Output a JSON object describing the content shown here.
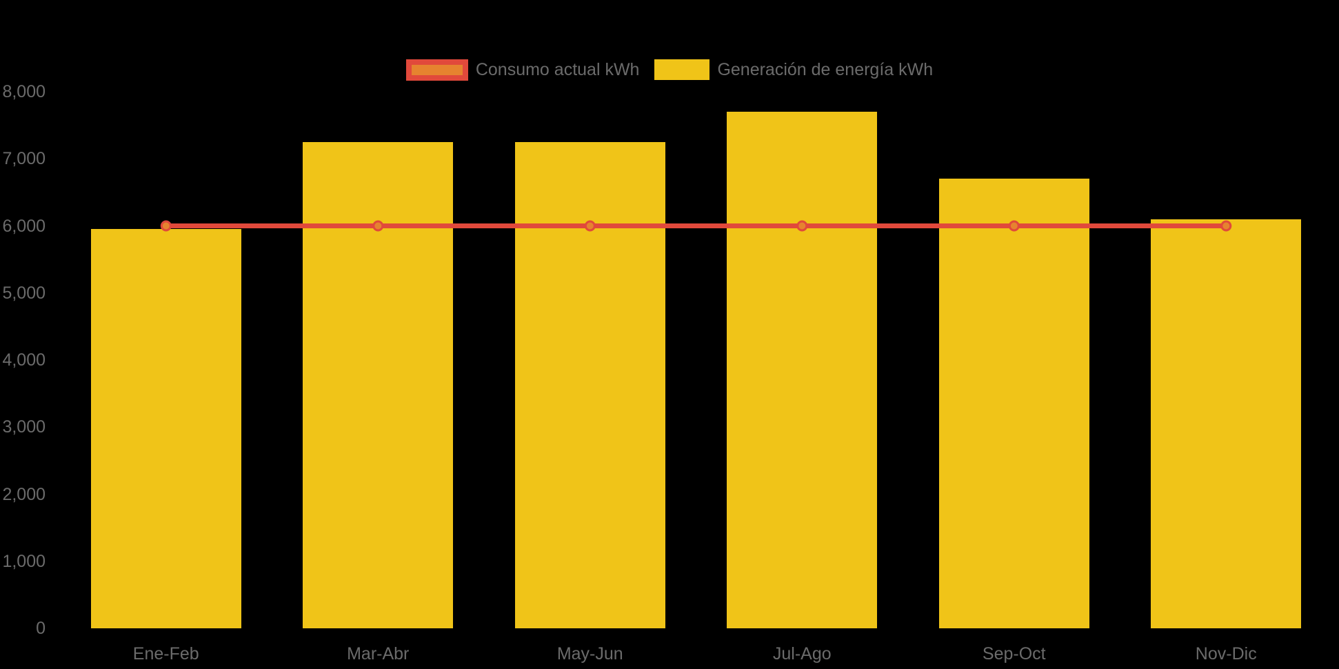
{
  "page": {
    "background": "#000000"
  },
  "colors": {
    "bar": "#F0C418",
    "line": "#E1493B",
    "point_fill": "#E6832F",
    "text": "#6B6B6B"
  },
  "legend": {
    "position": "top",
    "items": [
      {
        "label": "Consumo actual kWh",
        "series": "line"
      },
      {
        "label": "Generación de energía kWh",
        "series": "bar"
      }
    ]
  },
  "chart_data": {
    "type": "bar",
    "title": "",
    "xlabel": "",
    "ylabel": "",
    "categories": [
      "Ene-Feb",
      "Mar-Abr",
      "May-Jun",
      "Jul-Ago",
      "Sep-Oct",
      "Nov-Dic"
    ],
    "series": [
      {
        "name": "Generación de energía kWh",
        "type": "bar",
        "color": "#F0C418",
        "values": [
          5950,
          7250,
          7250,
          7700,
          6700,
          6100
        ]
      },
      {
        "name": "Consumo actual kWh",
        "type": "line",
        "color": "#E1493B",
        "point_color": "#E6832F",
        "values": [
          6000,
          6000,
          6000,
          6000,
          6000,
          6000
        ]
      }
    ],
    "ylim": [
      0,
      8000
    ],
    "yticks": [
      0,
      1000,
      2000,
      3000,
      4000,
      5000,
      6000,
      7000,
      8000
    ],
    "ytick_labels": [
      "0",
      "1,000",
      "2,000",
      "3,000",
      "4,000",
      "5,000",
      "6,000",
      "7,000",
      "8,000"
    ],
    "grid": false,
    "legend_position": "top"
  }
}
